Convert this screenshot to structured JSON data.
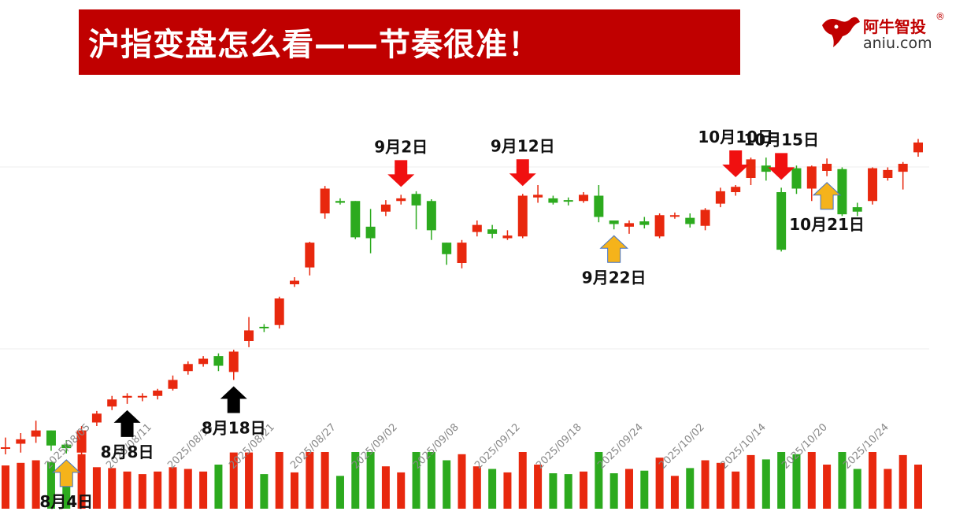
{
  "banner": {
    "title": "沪指变盘怎么看——节奏很准！"
  },
  "logo": {
    "cn": "阿牛智投",
    "reg": "®",
    "en": "aniu.com",
    "icon": "bull-head-icon"
  },
  "colors": {
    "up": "#e8280e",
    "down": "#2caa1e",
    "banner": "#c00000",
    "arrow_red": "#f01010",
    "arrow_black": "#000000",
    "arrow_gold": "#f5b31b"
  },
  "chart_data": {
    "type": "candlestick",
    "title": "",
    "xlabel": "",
    "ylabel": "",
    "ylim": [
      3520,
      4000
    ],
    "grid": true,
    "x_ticks": [
      "2025/08/05",
      "2025/08/11",
      "2025/08/15",
      "2025/08/21",
      "2025/08/27",
      "2025/09/02",
      "2025/09/08",
      "2025/09/12",
      "2025/09/18",
      "2025/09/24",
      "2025/10/02",
      "2025/10/14",
      "2025/10/20",
      "2025/10/24"
    ],
    "candles": [
      [
        3583,
        3584,
        3576,
        3595
      ],
      [
        3588,
        3593,
        3578,
        3600
      ],
      [
        3596,
        3603,
        3589,
        3614
      ],
      [
        3603,
        3586,
        3580,
        3603
      ],
      [
        3587,
        3583,
        3577,
        3592
      ],
      [
        3578,
        3603,
        3576,
        3608
      ],
      [
        3612,
        3622,
        3608,
        3625
      ],
      [
        3630,
        3638,
        3626,
        3642
      ],
      [
        3640,
        3642,
        3633,
        3645
      ],
      [
        3641,
        3642,
        3636,
        3645
      ],
      [
        3642,
        3648,
        3638,
        3650
      ],
      [
        3650,
        3660,
        3648,
        3665
      ],
      [
        3670,
        3678,
        3666,
        3681
      ],
      [
        3678,
        3684,
        3675,
        3687
      ],
      [
        3687,
        3676,
        3670,
        3690
      ],
      [
        3669,
        3692,
        3660,
        3694
      ],
      [
        3704,
        3716,
        3697,
        3731
      ],
      [
        3720,
        3719,
        3714,
        3723
      ],
      [
        3722,
        3752,
        3718,
        3754
      ],
      [
        3768,
        3772,
        3765,
        3776
      ],
      [
        3787,
        3815,
        3778,
        3816
      ],
      [
        3848,
        3876,
        3842,
        3879
      ],
      [
        3862,
        3860,
        3858,
        3865
      ],
      [
        3862,
        3821,
        3819,
        3862
      ],
      [
        3833,
        3820,
        3803,
        3853
      ],
      [
        3850,
        3858,
        3845,
        3863
      ],
      [
        3862,
        3865,
        3858,
        3869
      ],
      [
        3870,
        3857,
        3830,
        3873
      ],
      [
        3862,
        3829,
        3818,
        3864
      ],
      [
        3815,
        3802,
        3790,
        3815
      ],
      [
        3792,
        3815,
        3786,
        3818
      ],
      [
        3827,
        3835,
        3822,
        3840
      ],
      [
        3830,
        3825,
        3820,
        3835
      ],
      [
        3820,
        3823,
        3818,
        3829
      ],
      [
        3822,
        3868,
        3820,
        3870
      ],
      [
        3866,
        3869,
        3860,
        3880
      ],
      [
        3865,
        3860,
        3858,
        3868
      ],
      [
        3863,
        3862,
        3857,
        3866
      ],
      [
        3862,
        3869,
        3860,
        3872
      ],
      [
        3868,
        3844,
        3838,
        3880
      ],
      [
        3840,
        3836,
        3830,
        3840
      ],
      [
        3833,
        3837,
        3825,
        3840
      ],
      [
        3839,
        3835,
        3831,
        3844
      ],
      [
        3822,
        3846,
        3820,
        3848
      ],
      [
        3845,
        3846,
        3842,
        3849
      ],
      [
        3843,
        3836,
        3832,
        3848
      ],
      [
        3834,
        3852,
        3829,
        3854
      ],
      [
        3859,
        3873,
        3855,
        3877
      ],
      [
        3872,
        3878,
        3868,
        3880
      ],
      [
        3888,
        3909,
        3880,
        3911
      ],
      [
        3902,
        3895,
        3885,
        3911
      ],
      [
        3872,
        3807,
        3805,
        3877
      ],
      [
        3899,
        3876,
        3870,
        3902
      ],
      [
        3876,
        3901,
        3862,
        3902
      ],
      [
        3896,
        3904,
        3890,
        3910
      ],
      [
        3898,
        3847,
        3845,
        3900
      ],
      [
        3855,
        3850,
        3845,
        3860
      ],
      [
        3862,
        3899,
        3858,
        3900
      ],
      [
        3888,
        3897,
        3885,
        3900
      ],
      [
        3895,
        3904,
        3875,
        3906
      ],
      [
        3917,
        3928,
        3912,
        3932
      ]
    ],
    "annotations": [
      {
        "label": "8月4日",
        "index": 4,
        "arrow": "up",
        "arrow_color": "gold"
      },
      {
        "label": "8月8日",
        "index": 8,
        "arrow": "up",
        "arrow_color": "black"
      },
      {
        "label": "8月18日",
        "index": 15,
        "arrow": "up",
        "arrow_color": "black"
      },
      {
        "label": "9月2日",
        "index": 26,
        "arrow": "down",
        "arrow_color": "red"
      },
      {
        "label": "9月12日",
        "index": 34,
        "arrow": "down",
        "arrow_color": "red"
      },
      {
        "label": "9月22日",
        "index": 40,
        "arrow": "up",
        "arrow_color": "gold"
      },
      {
        "label": "10月10日",
        "index": 48,
        "arrow": "down",
        "arrow_color": "red"
      },
      {
        "label": "10月15日",
        "index": 51,
        "arrow": "down",
        "arrow_color": "red"
      },
      {
        "label": "10月21日",
        "index": 54,
        "arrow": "up",
        "arrow_color": "gold"
      }
    ]
  }
}
